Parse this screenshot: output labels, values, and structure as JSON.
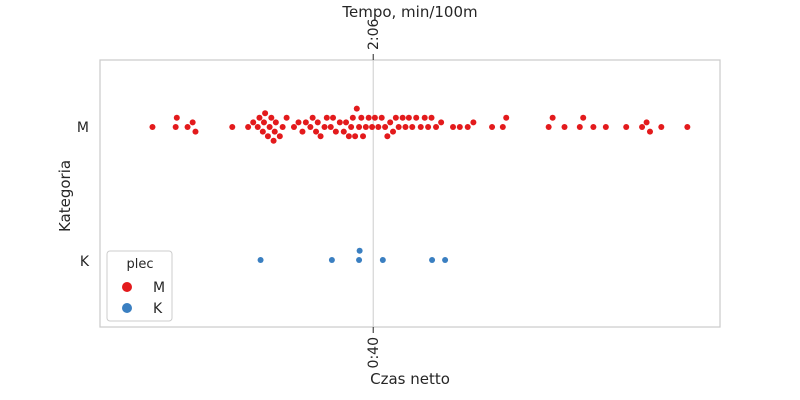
{
  "chart_data": {
    "type": "scatter",
    "style": "swarm",
    "title": "",
    "xlabel": "Czas netto",
    "ylabel": "Kategoria",
    "secondary_xlabel": "Tempo, min/100m",
    "categories": [
      "M",
      "K"
    ],
    "xlim": [
      0,
      100
    ],
    "x_ticks": [
      {
        "value": 43.5,
        "label": "0:40"
      }
    ],
    "secondary_x_ticks": [
      {
        "value": 43.5,
        "label": "2:06"
      }
    ],
    "grid": true,
    "legend": {
      "title": "plec",
      "entries": [
        "M",
        "K"
      ],
      "placement": "lower-left"
    },
    "colors": {
      "M": "#e31a1c",
      "K": "#3a7fc1",
      "axes": "#cccccc",
      "grid": "#cccccc"
    },
    "series": [
      {
        "name": "M",
        "category": "M",
        "x": [
          4.5,
          8.6,
          8.8,
          10.7,
          11.6,
          12.1,
          18.6,
          21.4,
          22.3,
          23.1,
          23.4,
          24.0,
          24.2,
          24.4,
          24.9,
          25.2,
          25.5,
          25.9,
          26.1,
          26.3,
          27.0,
          27.5,
          28.2,
          29.5,
          30.3,
          31.0,
          31.6,
          32.4,
          32.8,
          33.4,
          33.7,
          34.2,
          34.9,
          35.3,
          36.0,
          36.4,
          36.9,
          37.6,
          38.3,
          38.7,
          39.2,
          39.6,
          39.9,
          40.3,
          40.6,
          41.0,
          41.4,
          41.7,
          42.2,
          42.7,
          43.3,
          43.8,
          44.4,
          45.0,
          45.6,
          46.0,
          46.5,
          47.0,
          47.5,
          48.0,
          48.7,
          49.2,
          49.8,
          50.4,
          51.1,
          51.9,
          52.6,
          53.2,
          53.8,
          54.6,
          55.5,
          57.6,
          58.8,
          60.2,
          61.2,
          64.5,
          66.4,
          67.0,
          74.5,
          75.2,
          77.3,
          80.0,
          80.6,
          82.4,
          84.6,
          88.2,
          91.0,
          91.8,
          92.4,
          94.4,
          99.0
        ]
      },
      {
        "name": "K",
        "category": "K",
        "x": [
          23.6,
          36.2,
          41.0,
          41.1,
          45.2,
          53.9,
          56.2
        ]
      }
    ]
  }
}
